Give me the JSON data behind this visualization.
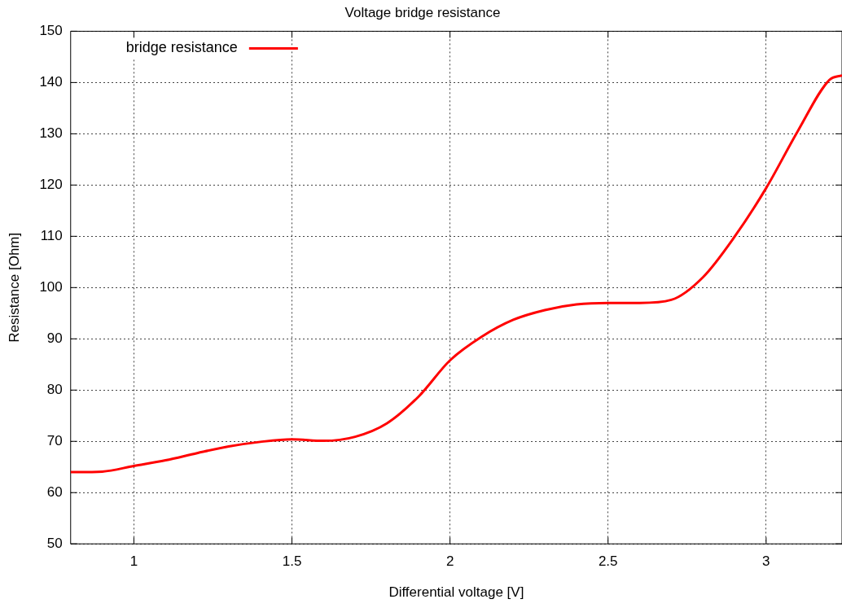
{
  "chart_data": {
    "type": "line",
    "title": "Voltage bridge resistance",
    "xlabel": "Differential voltage [V]",
    "ylabel": "Resistance [Ohm]",
    "x": [
      0.8,
      0.9,
      1.0,
      1.1,
      1.2,
      1.3,
      1.4,
      1.5,
      1.6,
      1.7,
      1.8,
      1.9,
      2.0,
      2.1,
      2.2,
      2.3,
      2.4,
      2.5,
      2.6,
      2.7,
      2.8,
      2.9,
      3.0,
      3.1,
      3.2,
      3.24
    ],
    "series": [
      {
        "name": "bridge resistance",
        "color": "#ff0000",
        "values": [
          64.0,
          64.1,
          65.2,
          66.3,
          67.7,
          69.0,
          69.9,
          70.4,
          70.1,
          70.9,
          73.5,
          78.7,
          85.8,
          90.4,
          93.7,
          95.6,
          96.7,
          97.0,
          97.0,
          97.6,
          102.0,
          109.9,
          119.4,
          130.5,
          140.5,
          141.4
        ]
      }
    ],
    "xlim": [
      0.8,
      3.24
    ],
    "xticks": [
      1,
      1.5,
      2,
      2.5,
      3
    ],
    "ylim": [
      50,
      150
    ],
    "yticks": [
      50,
      60,
      70,
      80,
      90,
      100,
      110,
      120,
      130,
      140,
      150
    ],
    "grid": true,
    "legend": "top left",
    "marker": "none",
    "line_style": "solid"
  }
}
